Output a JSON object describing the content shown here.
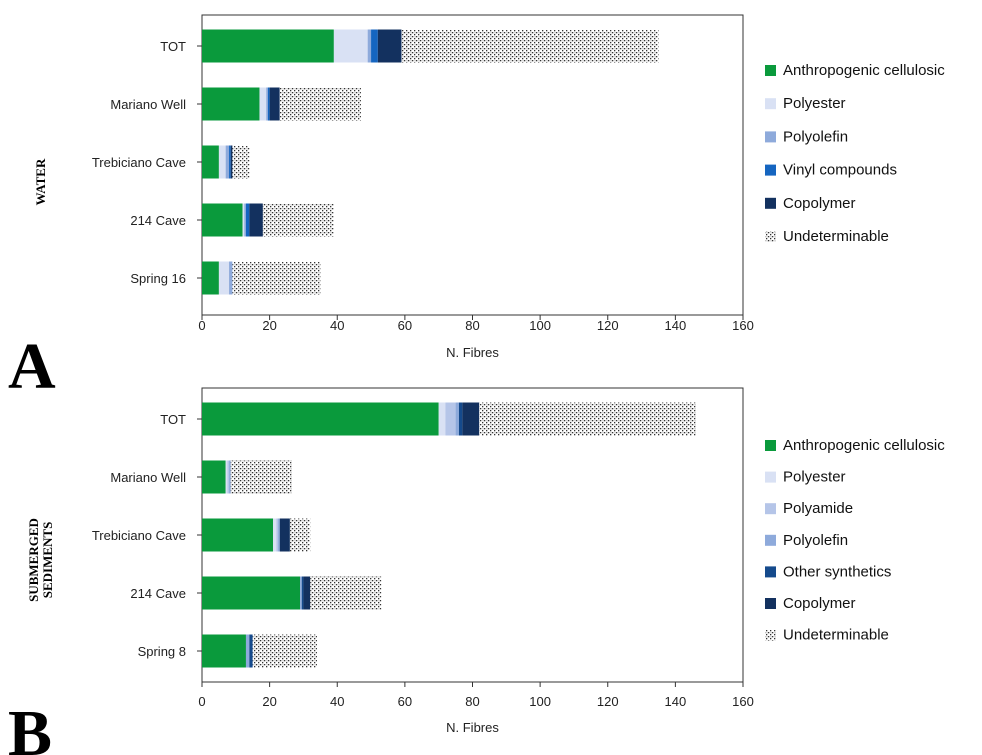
{
  "colors": {
    "Anthropogenic cellulosic": "#0a9a3c",
    "Polyester": "#d9e1f4",
    "Polyamide": "#b5c5e8",
    "Polyolefin": "#8eaadb",
    "Vinyl compounds": "#1565c0",
    "Other synthetics": "#154a8c",
    "Copolymer": "#13315f",
    "Undeterminable": "pattern"
  },
  "chart_data": [
    {
      "type": "bar",
      "orientation": "horizontal",
      "stacked": true,
      "panel_letter": "A",
      "side_label": [
        "WATER"
      ],
      "xlabel": "N. Fibres",
      "xlim": [
        0,
        160
      ],
      "xticks": [
        0,
        20,
        40,
        60,
        80,
        100,
        120,
        140,
        160
      ],
      "legend_placement": "right",
      "categories": [
        "TOT",
        "Mariano Well",
        "Trebiciano Cave",
        "214 Cave",
        "Spring 16"
      ],
      "series": [
        {
          "name": "Anthropogenic cellulosic",
          "values": [
            39,
            17,
            5,
            12,
            5
          ]
        },
        {
          "name": "Polyester",
          "values": [
            10,
            2,
            2,
            0.5,
            3
          ]
        },
        {
          "name": "Polyolefin",
          "values": [
            1,
            0.5,
            1,
            0.5,
            1
          ]
        },
        {
          "name": "Vinyl compounds",
          "values": [
            2,
            0.5,
            0.5,
            1,
            0
          ]
        },
        {
          "name": "Copolymer",
          "values": [
            7,
            3,
            0.5,
            4,
            0
          ]
        },
        {
          "name": "Undeterminable",
          "values": [
            76,
            24,
            5,
            21,
            26
          ]
        }
      ]
    },
    {
      "type": "bar",
      "orientation": "horizontal",
      "stacked": true,
      "panel_letter": "B",
      "side_label": [
        "SUBMERGED",
        "SEDIMENTS"
      ],
      "xlabel": "N. Fibres",
      "xlim": [
        0,
        160
      ],
      "xticks": [
        0,
        20,
        40,
        60,
        80,
        100,
        120,
        140,
        160
      ],
      "legend_placement": "right",
      "categories": [
        "TOT",
        "Mariano Well",
        "Trebiciano Cave",
        "214 Cave",
        "Spring 8"
      ],
      "series": [
        {
          "name": "Anthropogenic cellulosic",
          "values": [
            70,
            7,
            21,
            29,
            13
          ]
        },
        {
          "name": "Polyester",
          "values": [
            2,
            0.5,
            1,
            0,
            0
          ]
        },
        {
          "name": "Polyamide",
          "values": [
            3,
            0.5,
            0.5,
            0,
            0
          ]
        },
        {
          "name": "Polyolefin",
          "values": [
            1,
            0.5,
            0.5,
            0.5,
            1
          ]
        },
        {
          "name": "Other synthetics",
          "values": [
            1,
            0,
            0,
            0.5,
            1
          ]
        },
        {
          "name": "Copolymer",
          "values": [
            5,
            0,
            3,
            2,
            0
          ]
        },
        {
          "name": "Undeterminable",
          "values": [
            64,
            18,
            6,
            21,
            19
          ]
        }
      ]
    }
  ]
}
